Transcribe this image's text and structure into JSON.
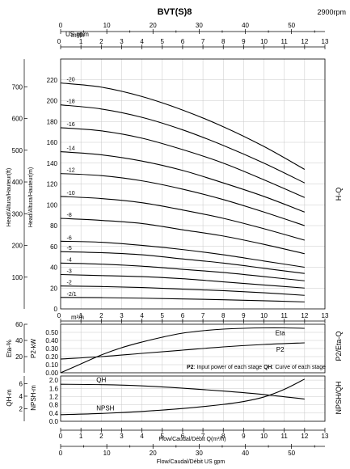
{
  "chart_data": [
    {
      "type": "line",
      "name": "H-Q",
      "title": "BVT(S)8",
      "speed": "2900rpm",
      "xlabel": "Flow/Caudal/Débit Q(m³/h)",
      "xlabel_gpm": "Flow/Caudal/Débit  US gpm",
      "x_unit_label": "m³/h",
      "gpm_unit_label": "US gpm",
      "ylabel_m": "Head/Altura/Hauteur(m)",
      "ylabel_ft": "Head/Altura/Hauteur(ft)",
      "side_label": "H-Q",
      "xlim": [
        0,
        13
      ],
      "ylim": [
        0,
        240
      ],
      "ylim_ft": [
        0,
        787
      ],
      "x_ticks": [
        "0",
        "1",
        "2",
        "3",
        "4",
        "5",
        "6",
        "7",
        "8",
        "9",
        "10",
        "11",
        "12",
        "13"
      ],
      "gpm_ticks": [
        "0",
        "10",
        "20",
        "30",
        "40",
        "50"
      ],
      "y_ticks": [
        "0",
        "20",
        "40",
        "60",
        "80",
        "100",
        "120",
        "140",
        "160",
        "180",
        "200",
        "220"
      ],
      "y_ticks_ft": [
        "100",
        "200",
        "300",
        "400",
        "500",
        "600",
        "700"
      ],
      "x": [
        0,
        2,
        4,
        6,
        8,
        10,
        12
      ],
      "series": [
        {
          "name": "-20",
          "values": [
            217,
            213,
            204,
            191,
            175,
            156,
            134
          ]
        },
        {
          "name": "-18",
          "values": [
            196,
            192,
            184,
            172,
            157,
            140,
            121
          ]
        },
        {
          "name": "-16",
          "values": [
            174,
            171,
            164,
            153,
            140,
            124,
            107
          ]
        },
        {
          "name": "-14",
          "values": [
            151,
            148,
            142,
            133,
            121,
            108,
            93
          ]
        },
        {
          "name": "-12",
          "values": [
            130,
            128,
            123,
            115,
            105,
            93,
            80
          ]
        },
        {
          "name": "-10",
          "values": [
            108,
            106,
            102,
            95,
            87,
            77,
            66
          ]
        },
        {
          "name": "-8",
          "values": [
            87,
            85,
            82,
            76,
            70,
            62,
            53
          ]
        },
        {
          "name": "-6",
          "values": [
            65,
            64,
            61,
            57,
            52,
            46,
            40
          ]
        },
        {
          "name": "-5",
          "values": [
            55,
            54,
            52,
            48,
            44,
            39,
            34
          ]
        },
        {
          "name": "-4",
          "values": [
            44,
            43,
            41,
            38,
            35,
            31,
            27
          ]
        },
        {
          "name": "-3",
          "values": [
            33,
            32,
            31,
            29,
            26,
            23,
            20
          ]
        },
        {
          "name": "-2",
          "values": [
            22,
            21.5,
            20.5,
            19,
            17.5,
            15.5,
            13
          ]
        },
        {
          "name": "-2/1",
          "values": [
            11,
            10.8,
            10.3,
            9.6,
            8.8,
            7.8,
            6.7
          ]
        }
      ]
    },
    {
      "type": "line",
      "name": "P2/Eta-Q",
      "side_label": "P2/Eta-Q",
      "ylabel_p2": "P2-kW",
      "ylabel_eta": "Eta-%",
      "note_bold_1": "P2",
      "note_1": ": Input power of each stage ",
      "note_bold_2": "QH",
      "note_2": ": Curve of each stage",
      "xlim": [
        0,
        13
      ],
      "ylim": [
        0,
        0.6
      ],
      "y_ticks": [
        "0.00",
        "0.10",
        "0.20",
        "0.30",
        "0.40",
        "0.50"
      ],
      "y_ticks_eta": [
        "20",
        "40",
        "60"
      ],
      "series": [
        {
          "name": "Eta",
          "x": [
            0,
            1,
            2,
            3,
            4,
            5,
            6,
            7,
            8,
            9,
            10,
            11,
            12
          ],
          "values": [
            0,
            0.11,
            0.22,
            0.31,
            0.38,
            0.44,
            0.49,
            0.52,
            0.54,
            0.55,
            0.555,
            0.555,
            0.55
          ]
        },
        {
          "name": "P2",
          "x": [
            0,
            2,
            4,
            6,
            8,
            10,
            12
          ],
          "values": [
            0.17,
            0.2,
            0.24,
            0.28,
            0.32,
            0.35,
            0.37
          ]
        }
      ]
    },
    {
      "type": "line",
      "name": "NPSH/QH",
      "side_label": "NPSH/QH",
      "ylabel_npsh": "NPSH-m",
      "ylabel_qh": "QH-m",
      "xlim": [
        0,
        13
      ],
      "ylim": [
        0,
        2.2
      ],
      "y_ticks": [
        "0.0",
        "0.4",
        "0.8",
        "1.2",
        "1.6",
        "2.0"
      ],
      "y_ticks_ft": [
        "2",
        "4",
        "6"
      ],
      "series": [
        {
          "name": "QH",
          "x": [
            0,
            2,
            4,
            6,
            8,
            10,
            12
          ],
          "values": [
            1.8,
            1.78,
            1.72,
            1.61,
            1.47,
            1.3,
            1.08
          ]
        },
        {
          "name": "NPSH",
          "x": [
            0,
            2,
            4,
            6,
            8,
            9,
            10,
            11,
            12
          ],
          "values": [
            0.32,
            0.38,
            0.48,
            0.62,
            0.82,
            0.96,
            1.18,
            1.55,
            2.05
          ]
        }
      ]
    }
  ]
}
